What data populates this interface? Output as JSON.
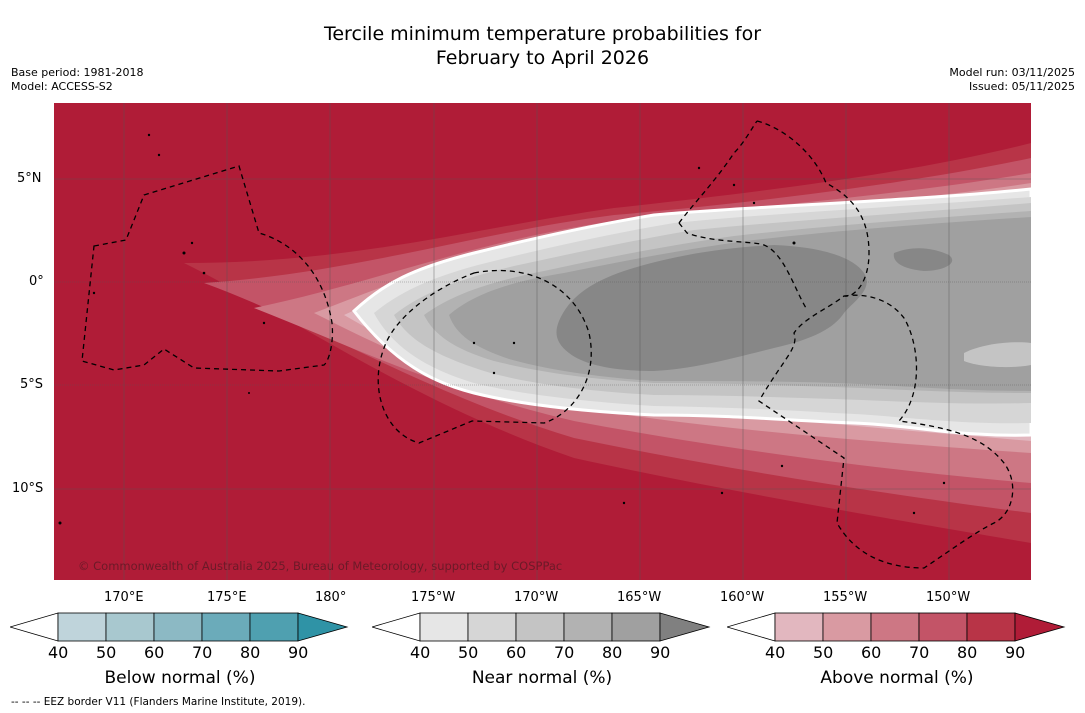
{
  "header": {
    "title_line1": "Tercile minimum temperature probabilities for",
    "title_line2": "February to April 2026",
    "base_period": "Base period: 1981-2018",
    "model": "Model: ACCESS-S2",
    "model_run": "Model run: 03/11/2025",
    "issued": "Issued: 05/11/2025"
  },
  "map": {
    "lat_labels": [
      "5°N",
      "0°",
      "5°S",
      "10°S"
    ],
    "lon_labels": [
      "170°E",
      "175°E",
      "180°",
      "175°W",
      "170°W",
      "165°W",
      "160°W",
      "155°W",
      "150°W"
    ],
    "copyright": "© Commonwealth of Australia 2025, Bureau of Meteorology, supported by COSPPac"
  },
  "colorbars": {
    "below": {
      "title": "Below normal (%)",
      "ticks": [
        "40",
        "50",
        "60",
        "70",
        "80",
        "90"
      ],
      "colors": [
        "#ffffff",
        "#bfd4db",
        "#a8c8cf",
        "#8cb9c4",
        "#6babba",
        "#4fa0b0",
        "#2f93a6"
      ]
    },
    "near": {
      "title": "Near normal (%)",
      "ticks": [
        "40",
        "50",
        "60",
        "70",
        "80",
        "90"
      ],
      "colors": [
        "#ffffff",
        "#e6e6e6",
        "#d6d6d6",
        "#c4c4c4",
        "#b2b2b2",
        "#a0a0a0",
        "#808080"
      ]
    },
    "above": {
      "title": "Above normal (%)",
      "ticks": [
        "40",
        "50",
        "60",
        "70",
        "80",
        "90"
      ],
      "colors": [
        "#ffffff",
        "#e2b7bf",
        "#d99aa2",
        "#cd7784",
        "#c35467",
        "#b83447",
        "#b01c37"
      ]
    }
  },
  "footnote": "--  --  -- EEZ border V11 (Flanders Marine Institute, 2019)."
}
